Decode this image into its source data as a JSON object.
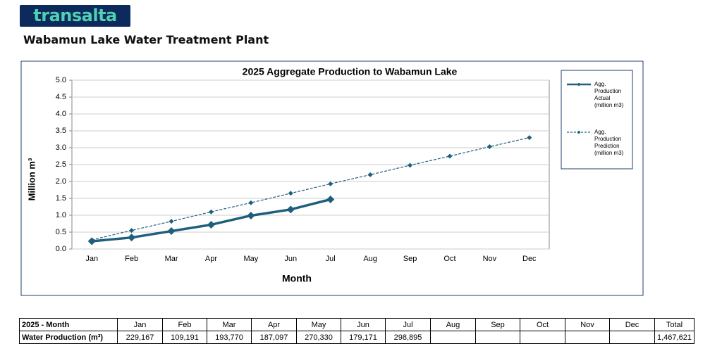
{
  "logo": "transalta",
  "page_title": "Wabamun Lake Water Treatment Plant",
  "chart_data": {
    "type": "line",
    "title": "2025 Aggregate Production to Wabamun Lake",
    "x_label": "Month",
    "y_label": "Million m³",
    "categories": [
      "Jan",
      "Feb",
      "Mar",
      "Apr",
      "May",
      "Jun",
      "Jul",
      "Aug",
      "Sep",
      "Oct",
      "Nov",
      "Dec"
    ],
    "series": [
      {
        "name": "Agg. Production Actual (million m3)",
        "color": "#1d5f7c",
        "style": "solid",
        "values": [
          0.23,
          0.34,
          0.53,
          0.72,
          0.99,
          1.17,
          1.47,
          null,
          null,
          null,
          null,
          null
        ]
      },
      {
        "name": "Agg. Production Prediction (million m3)",
        "color": "#1d5f7c",
        "style": "dashed",
        "values": [
          0.27,
          0.55,
          0.82,
          1.1,
          1.37,
          1.65,
          1.93,
          2.2,
          2.48,
          2.75,
          3.03,
          3.3
        ]
      }
    ],
    "ylim": [
      0,
      5
    ],
    "yticks": [
      {
        "value": 0,
        "label": "0.0"
      },
      0.5,
      {
        "value": 1,
        "label": "1.0"
      },
      1.5,
      {
        "value": 2,
        "label": "2.0"
      },
      2.5,
      {
        "value": 3,
        "label": "3.0"
      },
      3.5,
      {
        "value": 4,
        "label": "4.0"
      },
      4.5,
      {
        "value": 5,
        "label": "5.0"
      }
    ],
    "grid": true,
    "legend": "right"
  },
  "table": {
    "header": [
      "2025 - Month",
      "Jan",
      "Feb",
      "Mar",
      "Apr",
      "May",
      "Jun",
      "Jul",
      "Aug",
      "Sep",
      "Oct",
      "Nov",
      "Dec",
      "Total"
    ],
    "row": {
      "label": "Water Production (m³)",
      "values": [
        "229,167",
        "109,191",
        "193,770",
        "187,097",
        "270,330",
        "179,171",
        "298,895"
      ],
      "total": "1,467,621"
    }
  }
}
